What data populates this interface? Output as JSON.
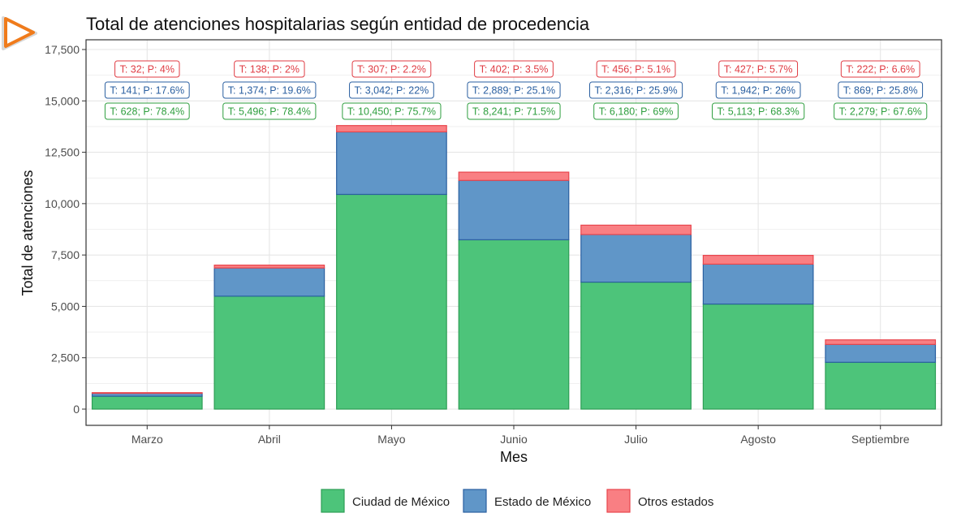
{
  "chart_data": {
    "type": "bar",
    "stacked": true,
    "title": "Total de atenciones hospitalarias según entidad de procedencia",
    "xlabel": "Mes",
    "ylabel": "Total de atenciones",
    "ylim": [
      0,
      17500
    ],
    "yticks": [
      0,
      2500,
      5000,
      7500,
      10000,
      12500,
      15000,
      17500
    ],
    "ytick_labels": [
      "0",
      "2,500",
      "5,000",
      "7,500",
      "10,000",
      "12,500",
      "15,000",
      "17,500"
    ],
    "categories": [
      "Marzo",
      "Abril",
      "Mayo",
      "Junio",
      "Julio",
      "Agosto",
      "Septiembre"
    ],
    "series": [
      {
        "name": "Ciudad de México",
        "color": "#4DC47A",
        "stroke": "#2E9E56",
        "label_color": "#2E9E3E",
        "values": [
          628,
          5496,
          10450,
          8241,
          6180,
          5113,
          2279
        ],
        "labels": [
          "T: 628; P: 78.4%",
          "T: 5,496; P: 78.4%",
          "T: 10,450; P: 75.7%",
          "T: 8,241; P: 71.5%",
          "T: 6,180; P: 69%",
          "T: 5,113; P: 68.3%",
          "T: 2,279; P: 67.6%"
        ]
      },
      {
        "name": "Estado de México",
        "color": "#6096C8",
        "stroke": "#2A5FA0",
        "label_color": "#2A5FA0",
        "values": [
          141,
          1374,
          3042,
          2889,
          2316,
          1942,
          869
        ],
        "labels": [
          "T: 141; P: 17.6%",
          "T: 1,374; P: 19.6%",
          "T: 3,042; P: 22%",
          "T: 2,889; P: 25.1%",
          "T: 2,316; P: 25.9%",
          "T: 1,942; P: 26%",
          "T: 869; P: 25.8%"
        ]
      },
      {
        "name": "Otros estados",
        "color": "#F97F83",
        "stroke": "#E8464D",
        "label_color": "#E03B43",
        "values": [
          32,
          138,
          307,
          402,
          456,
          427,
          222
        ],
        "labels": [
          "T: 32; P: 4%",
          "T: 138; P: 2%",
          "T: 307; P: 2.2%",
          "T: 402; P: 3.5%",
          "T: 456; P: 5.1%",
          "T: 427; P: 5.7%",
          "T: 222; P: 6.6%"
        ]
      }
    ],
    "legend": "bottom",
    "grid": true
  },
  "logo": {
    "icon": "play-triangle-logo-icon",
    "color": "#F07B1B"
  }
}
